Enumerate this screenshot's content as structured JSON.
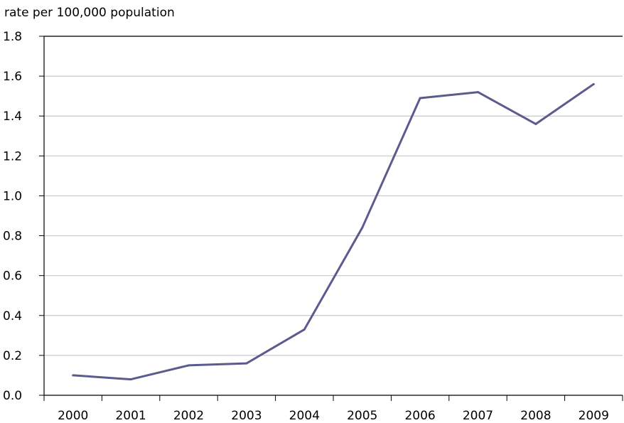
{
  "chart_data": {
    "type": "line",
    "title": "",
    "xlabel": "",
    "ylabel": "rate per 100,000 population",
    "categories": [
      "2000",
      "2001",
      "2002",
      "2003",
      "2004",
      "2005",
      "2006",
      "2007",
      "2008",
      "2009"
    ],
    "ylim": [
      0,
      1.8
    ],
    "yticks": [
      "0.0",
      "0.2",
      "0.4",
      "0.6",
      "0.8",
      "1.0",
      "1.2",
      "1.4",
      "1.6",
      "1.8"
    ],
    "grid": true,
    "series": [
      {
        "values": [
          0.1,
          0.08,
          0.15,
          0.16,
          0.33,
          0.84,
          1.49,
          1.52,
          1.36,
          1.56
        ],
        "color": "#5b5b8f"
      }
    ]
  }
}
